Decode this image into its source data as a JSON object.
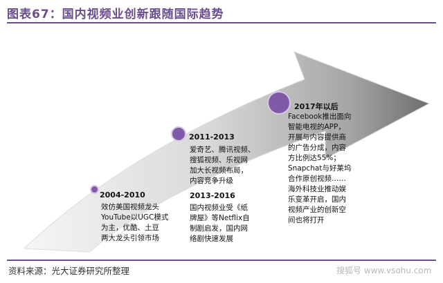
{
  "title": "图表67：国内视频业创新跟随国际趋势",
  "source": "资料来源：光大证券研究所整理",
  "watermark": "搜狐号 www.vsohu.com",
  "colors": {
    "accent": "#6b4d8e",
    "dot": "#7f5ba7",
    "arrow_light": "#f1f1f1",
    "arrow_dark": "#7a7a7a"
  },
  "milestones": [
    {
      "label": "2004-2010",
      "lines": [
        "效仿美国视频龙头",
        "YouTube以UGC模式",
        "为主，优酷、土豆",
        "两大龙头引领市场"
      ]
    },
    {
      "label": "2011-2013",
      "lines": [
        "爱奇艺、腾讯视频、",
        "搜狐视频、乐视网",
        "加大长视频布局，",
        "内容竞争升级"
      ]
    },
    {
      "label": "2013-2016",
      "lines": [
        "国内视频业受《纸",
        "牌屋》等Netflix自",
        "制剧启发，国内网",
        "络剧快速发展"
      ]
    },
    {
      "label": "2017年以后",
      "lines": [
        "Facebook推出面向",
        "智能电视的APP，",
        "开展与内容提供商",
        "的广告分成，内容",
        "方比例达55%；",
        "Snapchat与好莱坞",
        "合作原创视频……",
        "海外科技业推动娱",
        "乐变革开启，国内",
        "视频产业的创新空",
        "间也将打开"
      ]
    }
  ]
}
